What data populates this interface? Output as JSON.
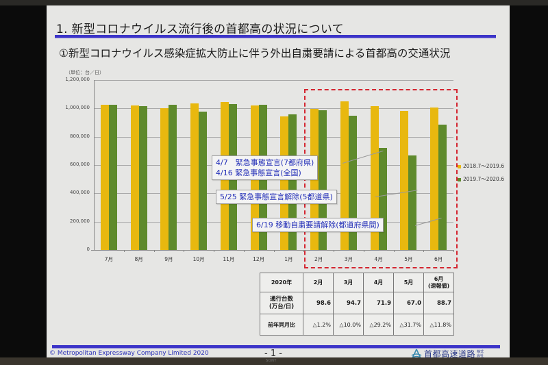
{
  "slide": {
    "title": "1.  新型コロナウイルス流行後の首都高の状況について",
    "subtitle": "①新型コロナウイルス感染症拡大防止に伴う外出自粛要請による首都高の交通状況",
    "unit_label": "（単位：台／日）",
    "callouts": [
      {
        "lines": [
          "4/7　緊急事態宣言(7都府県)",
          "4/16  緊急事態宣言(全国)"
        ]
      },
      {
        "lines": [
          "5/25  緊急事態宣言解除(5都道県)"
        ]
      },
      {
        "lines": [
          "6/19  移動自粛要請解除(都道府県間)"
        ]
      }
    ],
    "legend": [
      "2018.7〜2019.6",
      "2019.7〜2020.6"
    ],
    "table": {
      "header": [
        "2020年",
        "2月",
        "3月",
        "4月",
        "5月",
        "6月\n(速報値)"
      ],
      "header_col": "2020年",
      "months": [
        "2月",
        "3月",
        "4月",
        "5月"
      ],
      "last_month": "6月",
      "last_month_note": "(速報値)",
      "row1_label_line1": "通行台数",
      "row1_label_line2": "(万台/日)",
      "row1_values": [
        "98.6",
        "94.7",
        "71.9",
        "67.0",
        "88.7"
      ],
      "row2_label": "前年同月比",
      "row2_values": [
        "△1.2%",
        "△10.0%",
        "△29.2%",
        "△31.7%",
        "△11.8%"
      ]
    },
    "footer": {
      "copyright": "©  Metropolitan Expressway Company Limited  2020",
      "page": "- 1 -",
      "logo_text": "首都高速道路",
      "logo_small": "株式会社"
    },
    "monitor_brand": "SONY",
    "colors": {
      "series1": "#e8b80f",
      "series2": "#5e8a2c",
      "title_rule": "#3c34c8",
      "highlight_box": "#d42530",
      "callout_text": "#2430b8"
    }
  },
  "chart_data": {
    "type": "bar",
    "title": "新型コロナウイルス感染症拡大防止に伴う外出自粛要請による首都高の交通状況",
    "xlabel": "",
    "ylabel": "（単位：台／日）",
    "categories": [
      "7月",
      "8月",
      "9月",
      "10月",
      "11月",
      "12月",
      "1月",
      "2月",
      "3月",
      "4月",
      "5月",
      "6月"
    ],
    "series": [
      {
        "name": "2018.7〜2019.6",
        "color": "#e8b80f",
        "values": [
          1027000,
          1023000,
          1003000,
          1034000,
          1044000,
          1019000,
          943000,
          998000,
          1052000,
          1016000,
          981000,
          1006000
        ]
      },
      {
        "name": "2019.7〜2020.6",
        "color": "#5e8a2c",
        "values": [
          1027000,
          1018000,
          1027000,
          976000,
          1031000,
          1026000,
          956000,
          986000,
          947000,
          719000,
          670000,
          887000
        ]
      }
    ],
    "ylim": [
      0,
      1200000
    ],
    "yticks": [
      "0",
      "200,000",
      "400,000",
      "600,000",
      "800,000",
      "1,000,000",
      "1,200,000"
    ],
    "grid": true,
    "legend_position": "right",
    "annotations": [
      "4/7 緊急事態宣言(7都府県) / 4/16 緊急事態宣言(全国)",
      "5/25 緊急事態宣言解除(5都道県)",
      "6/19 移動自粛要請解除(都道府県間)"
    ],
    "highlight_range": [
      "2月",
      "6月"
    ]
  }
}
